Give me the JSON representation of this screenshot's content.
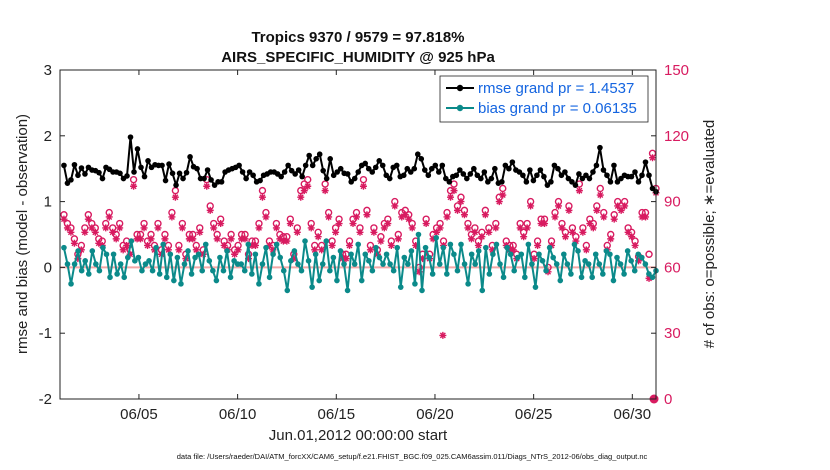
{
  "chart_data": {
    "type": "line",
    "title": "Tropics 9370 / 9579 = 97.818%",
    "subtitle": "AIRS_SPECIFIC_HUMIDITY @ 925 hPa",
    "xlabel": "Jun.01,2012 00:00:00 start",
    "ylabel": "rmse and bias (model - observation)",
    "ylabel_right": "# of obs: o=possible; ∗=evaluated",
    "footnote": "data file: /Users/raeder/DAI/ATM_forcXX/CAM6_setup/f.e21.FHIST_BGC.f09_025.CAM6assim.011/Diags_NTrS_2012-06/obs_diag_output.nc",
    "xlim": [
      1,
      31.2
    ],
    "ylim": [
      -2,
      3
    ],
    "ylim_right": [
      0,
      150
    ],
    "xticks": [
      5,
      10,
      15,
      20,
      25,
      30
    ],
    "xtick_labels": [
      "06/05",
      "06/10",
      "06/15",
      "06/20",
      "06/25",
      "06/30"
    ],
    "yticks": [
      -2,
      -1,
      0,
      1,
      2,
      3
    ],
    "yticks_right": [
      0,
      30,
      60,
      90,
      120,
      150
    ],
    "zero_line": 0,
    "colors": {
      "rmse": "#000000",
      "bias": "#0b8a8a",
      "obs": "#d81b60",
      "zero_line": "#f2a8a8",
      "legend_text": "#1565e0"
    },
    "legend": [
      "rmse grand pr = 1.4537",
      "bias grand pr = 0.06135"
    ],
    "series": [
      {
        "name": "rmse grand pr = 1.4537",
        "axis": "left",
        "marker": "filled-circle",
        "values": [
          1.55,
          1.28,
          1.33,
          1.56,
          1.4,
          1.51,
          1.42,
          1.52,
          1.48,
          1.47,
          1.44,
          1.35,
          1.52,
          1.49,
          1.45,
          1.45,
          1.43,
          1.35,
          1.39,
          1.98,
          1.45,
          1.8,
          1.52,
          1.38,
          1.62,
          1.52,
          1.56,
          1.55,
          1.55,
          1.32,
          1.57,
          1.43,
          1.25,
          1.43,
          1.35,
          1.44,
          1.68,
          1.53,
          1.5,
          1.35,
          1.35,
          1.48,
          1.33,
          1.25,
          1.3,
          1.3,
          1.45,
          1.48,
          1.5,
          1.52,
          1.55,
          1.45,
          1.35,
          1.45,
          1.4,
          1.3,
          1.32,
          1.4,
          1.42,
          1.45,
          1.45,
          1.42,
          1.38,
          1.45,
          1.55,
          1.47,
          1.42,
          1.48,
          1.38,
          1.55,
          1.7,
          1.55,
          1.65,
          1.72,
          1.47,
          1.35,
          1.65,
          1.4,
          1.45,
          1.5,
          1.43,
          1.42,
          1.3,
          1.35,
          1.45,
          1.55,
          1.58,
          1.5,
          1.45,
          1.52,
          1.62,
          1.55,
          1.4,
          1.35,
          1.52,
          1.55,
          1.38,
          1.4,
          1.5,
          1.45,
          1.5,
          1.72,
          1.65,
          1.48,
          1.4,
          1.5,
          1.55,
          1.45,
          1.55,
          1.35,
          1.3,
          1.38,
          1.4,
          1.48,
          1.42,
          1.35,
          1.42,
          1.5,
          1.4,
          1.35,
          1.45,
          1.3,
          1.35,
          1.5,
          1.28,
          1.3,
          1.55,
          1.5,
          1.6,
          1.48,
          1.45,
          1.4,
          1.3,
          1.48,
          1.32,
          1.4,
          1.48,
          1.38,
          1.25,
          1.3,
          1.55,
          1.5,
          1.4,
          1.45,
          1.35,
          1.3,
          1.25,
          1.42,
          1.35,
          1.4,
          1.35,
          1.45,
          1.55,
          1.82,
          1.48,
          1.4,
          1.3,
          1.55,
          1.3,
          1.35,
          1.4,
          1.38,
          1.38,
          1.45,
          1.3,
          1.4,
          1.6,
          1.4,
          1.2,
          1.15
        ]
      },
      {
        "name": "bias grand pr = 0.06135",
        "axis": "left",
        "marker": "filled-circle",
        "values": [
          0.3,
          0.05,
          -0.25,
          0.05,
          0.25,
          -0.05,
          0.1,
          -0.1,
          0.25,
          0.05,
          -0.05,
          0.3,
          0.2,
          -0.15,
          0.2,
          -0.1,
          0.05,
          -0.15,
          0.15,
          0.4,
          0.1,
          0.15,
          -0.05,
          0.05,
          0.1,
          -0.05,
          0.3,
          -0.1,
          0.35,
          -0.15,
          0.2,
          -0.2,
          0.15,
          -0.25,
          0.05,
          0.25,
          -0.1,
          0.15,
          0.2,
          -0.05,
          0.35,
          0.1,
          -0.05,
          -0.2,
          0.15,
          -0.05,
          0.25,
          -0.15,
          0.1,
          0.05,
          0.05,
          -0.05,
          0.35,
          -0.1,
          0.2,
          -0.25,
          0.05,
          0.3,
          -0.15,
          0.2,
          0.35,
          0.15,
          -0.05,
          -0.35,
          0.1,
          0.25,
          0.05,
          -0.05,
          0.4,
          0.1,
          -0.3,
          0.2,
          -0.2,
          0.05,
          0.4,
          -0.05,
          0.15,
          -0.2,
          0.25,
          0.05,
          -0.35,
          0.2,
          0.05,
          0.35,
          -0.2,
          0.2,
          0.1,
          -0.05,
          0.3,
          0.15,
          0.05,
          0.2,
          0.05,
          -0.05,
          0.3,
          -0.3,
          0.15,
          0.05,
          0.25,
          -0.25,
          0.5,
          -0.35,
          0.3,
          0.15,
          -0.1,
          0.45,
          0.05,
          0.3,
          -0.1,
          0.35,
          0.2,
          -0.05,
          0.35,
          0.05,
          -0.25,
          0.2,
          0.05,
          0.25,
          -0.35,
          0.3,
          -0.1,
          0.2,
          0.35,
          0.05,
          -0.15,
          0.3,
          0.2,
          -0.05,
          0.15,
          0.2,
          -0.15,
          0.35,
          0.05,
          -0.3,
          0.2,
          0.1,
          -0.05,
          0.3,
          0.15,
          0.05,
          -0.2,
          0.2,
          0.05,
          -0.1,
          0.35,
          0.25,
          -0.15,
          0.1,
          0.05,
          -0.15,
          0.2,
          0.05,
          -0.1,
          0.25,
          0.2,
          -0.2,
          0.15,
          0.05,
          -0.1,
          0.25,
          0.1,
          -0.05,
          0.2,
          0.15,
          0.05,
          -0.1,
          -0.15,
          -0.05
        ]
      },
      {
        "name": "obs possible",
        "axis": "right",
        "marker": "o",
        "values": [
          84,
          80,
          78,
          73,
          66,
          70,
          78,
          84,
          80,
          78,
          73,
          72,
          80,
          85,
          78,
          75,
          80,
          70,
          72,
          68,
          100,
          75,
          75,
          80,
          72,
          75,
          70,
          80,
          68,
          75,
          70,
          85,
          95,
          70,
          80,
          66,
          75,
          75,
          70,
          78,
          68,
          100,
          88,
          80,
          75,
          82,
          72,
          70,
          75,
          68,
          70,
          75,
          75,
          66,
          72,
          72,
          80,
          95,
          85,
          72,
          70,
          80,
          75,
          74,
          74,
          82,
          66,
          78,
          95,
          98,
          100,
          80,
          70,
          76,
          70,
          98,
          85,
          72,
          78,
          82,
          66,
          66,
          72,
          82,
          85,
          78,
          100,
          86,
          70,
          78,
          68,
          74,
          80,
          82,
          72,
          90,
          75,
          85,
          86,
          84,
          80,
          72,
          60,
          66,
          82,
          66,
          75,
          78,
          80,
          72,
          85,
          95,
          98,
          88,
          92,
          86,
          80,
          75,
          78,
          72,
          76,
          86,
          78,
          70,
          80,
          92,
          96,
          72,
          70,
          70,
          66,
          80,
          76,
          80,
          90,
          66,
          72,
          82,
          82,
          60,
          72,
          85,
          90,
          80,
          76,
          88,
          78,
          74,
          98,
          78,
          70,
          82,
          80,
          88,
          96,
          85,
          70,
          75,
          84,
          90,
          88,
          90,
          78,
          76,
          72,
          65,
          85,
          85,
          66,
          112,
          96
        ]
      },
      {
        "name": "obs evaluated",
        "axis": "right",
        "marker": "asterisk",
        "values": [
          82,
          78,
          76,
          71,
          64,
          68,
          76,
          82,
          78,
          76,
          71,
          70,
          78,
          83,
          76,
          73,
          78,
          68,
          70,
          66,
          97,
          73,
          73,
          78,
          70,
          73,
          68,
          78,
          66,
          73,
          68,
          83,
          92,
          68,
          78,
          64,
          73,
          73,
          68,
          76,
          66,
          97,
          86,
          78,
          73,
          80,
          70,
          68,
          73,
          66,
          68,
          73,
          73,
          64,
          70,
          70,
          78,
          92,
          83,
          70,
          68,
          78,
          73,
          72,
          72,
          80,
          64,
          76,
          92,
          95,
          97,
          78,
          68,
          74,
          68,
          95,
          83,
          70,
          76,
          80,
          64,
          64,
          70,
          80,
          83,
          76,
          97,
          84,
          68,
          76,
          66,
          72,
          78,
          80,
          70,
          88,
          73,
          83,
          84,
          82,
          78,
          70,
          58,
          64,
          80,
          64,
          73,
          76,
          78,
          70,
          83,
          92,
          95,
          86,
          90,
          84,
          78,
          73,
          76,
          70,
          74,
          84,
          76,
          68,
          78,
          90,
          93,
          70,
          68,
          68,
          64,
          78,
          74,
          78,
          88,
          64,
          70,
          80,
          80,
          58,
          70,
          83,
          88,
          78,
          74,
          86,
          76,
          72,
          95,
          76,
          68,
          80,
          78,
          86,
          93,
          83,
          68,
          73,
          82,
          88,
          86,
          88,
          76,
          74,
          70,
          63,
          83,
          83,
          55,
          110,
          94
        ]
      },
      {
        "name": "outliers",
        "axis": "right",
        "marker": "o",
        "x": [
          20.4,
          31.1
        ],
        "values": [
          29,
          0
        ]
      }
    ]
  }
}
